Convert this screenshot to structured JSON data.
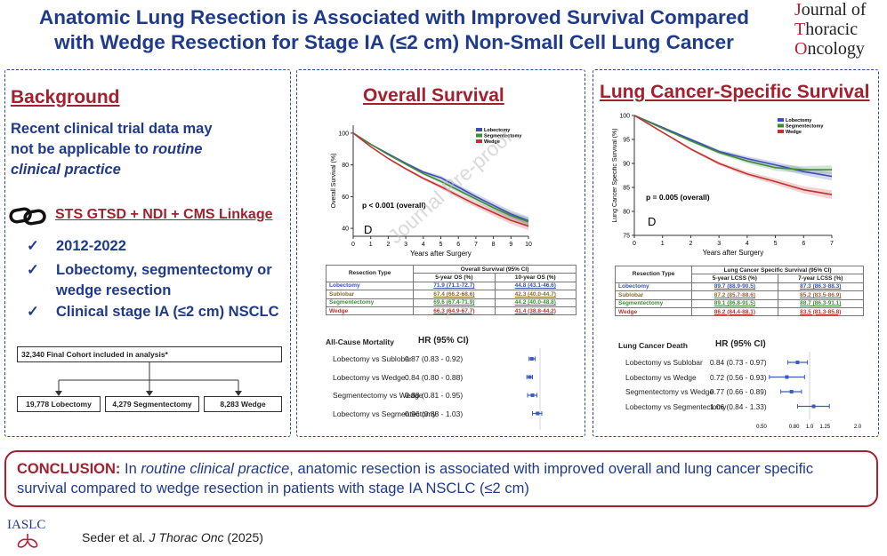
{
  "header": {
    "title_line1": "Anatomic Lung Resection is Associated with Improved Survival Compared",
    "title_line2": "with Wedge Resection for Stage IA (≤2 cm) Non-Small Cell Lung Cancer",
    "journal": [
      "Journal of",
      "Thoracic",
      "Oncology"
    ]
  },
  "background": {
    "heading": "Background",
    "text_line1": "Recent clinical trial data may",
    "text_line2": "not be applicable to",
    "text_italic": "routine",
    "text_line3": "clinical practice",
    "link_icon": "link-chain-icon",
    "linkage": "STS GTSD + NDI + CMS Linkage",
    "bullets": [
      {
        "lines": [
          "2012-2022"
        ]
      },
      {
        "lines": [
          "Lobectomy, segmentectomy or",
          "wedge resection"
        ]
      },
      {
        "lines": [
          "Clinical stage IA (≤2 cm) NSCLC"
        ]
      }
    ],
    "check": "✓",
    "cohort": "32,340 Final Cohort included in analysis*",
    "arms": [
      "19,778 Lobectomy",
      "4,279 Segmentectomy",
      "8,283 Wedge"
    ]
  },
  "os": {
    "heading": "Overall Survival",
    "watermark": "Journal Pre-proof",
    "chart_data": {
      "type": "line",
      "ylabel": "Overall Survival (%)",
      "xlabel": "Years after Surgery",
      "xlim": [
        0,
        10
      ],
      "ylim": [
        35,
        105
      ],
      "xticks": [
        0,
        1,
        2,
        3,
        4,
        5,
        6,
        7,
        8,
        9,
        10
      ],
      "yticks": [
        40,
        60,
        80,
        100
      ],
      "p_value": "p < 0.001 (overall)",
      "panel_letter": "D",
      "legend_position": "top-right",
      "series": [
        {
          "name": "Lobectomy",
          "color": "#3b4fb8",
          "x": [
            0,
            1,
            2,
            3,
            4,
            5,
            6,
            7,
            8,
            9,
            10
          ],
          "y": [
            100,
            93,
            87,
            81,
            75.5,
            71.9,
            66,
            60,
            54.5,
            49,
            44.8
          ]
        },
        {
          "name": "Segmentectomy",
          "color": "#3e8a3a",
          "x": [
            0,
            1,
            2,
            3,
            4,
            5,
            6,
            7,
            8,
            9,
            10
          ],
          "y": [
            100,
            93,
            86.5,
            80.5,
            74.5,
            69.6,
            64,
            58.5,
            53,
            48,
            44.2
          ]
        },
        {
          "name": "Wedge",
          "color": "#c23030",
          "x": [
            0,
            1,
            2,
            3,
            4,
            5,
            6,
            7,
            8,
            9,
            10
          ],
          "y": [
            100,
            91.5,
            84,
            77.5,
            71.5,
            66.3,
            60.5,
            55,
            50,
            45,
            41.4
          ]
        }
      ]
    },
    "table": {
      "headers": [
        "Resection Type",
        "Overall Survival (95% CI)"
      ],
      "subheaders": [
        "5-year OS (%)",
        "10-year OS (%)"
      ],
      "rows": [
        {
          "type": "Lobectomy",
          "a": "71.9 (71.1-72.7)",
          "b": "44.8 (43.1-46.6)",
          "color": "#3b4fb8"
        },
        {
          "type": "Sublobar",
          "a": "67.4 (66.2-68.6)",
          "b": "42.3 (40.0-44.7)",
          "color": "#8a6a2a"
        },
        {
          "type": "Segmentectomy",
          "a": "69.6 (67.4-71.9)",
          "b": "44.2 (40.0-48.8)",
          "color": "#3e8a3a"
        },
        {
          "type": "Wedge",
          "a": "66.3 (64.9-67.7)",
          "b": "41.4 (38.8-44.2)",
          "color": "#c23030"
        }
      ]
    },
    "forest": {
      "title": "All-Cause Mortality",
      "hr_header": "HR (95% CI)",
      "rows": [
        {
          "label": "Lobectomy vs Sublobar",
          "hr": "0.87 (0.83 - 0.92)",
          "v": 0.87,
          "lo": 0.83,
          "hi": 0.92
        },
        {
          "label": "Lobectomy vs Wedge",
          "hr": "0.84 (0.80 - 0.88)",
          "v": 0.84,
          "lo": 0.8,
          "hi": 0.88
        },
        {
          "label": "Segmentectomy vs Wedge",
          "hr": "0.88 (0.81 - 0.95)",
          "v": 0.88,
          "lo": 0.81,
          "hi": 0.95
        },
        {
          "label": "Lobectomy vs Segmentectomy",
          "hr": "0.96 (0.88 - 1.03)",
          "v": 0.96,
          "lo": 0.88,
          "hi": 1.03
        }
      ],
      "ticks": [
        "0.50",
        "0.80",
        "1.0",
        "1.25",
        "2.0"
      ]
    }
  },
  "lcss": {
    "heading": "Lung Cancer-Specific Survival",
    "chart_data": {
      "type": "line",
      "ylabel": "Lung Cancer Specific Survival (%)",
      "xlabel": "Years after Surgery",
      "xlim": [
        0,
        7
      ],
      "ylim": [
        75,
        100
      ],
      "xticks": [
        0,
        1,
        2,
        3,
        4,
        5,
        6,
        7
      ],
      "yticks": [
        75,
        80,
        85,
        90,
        95,
        100
      ],
      "p_value": "p = 0.005 (overall)",
      "panel_letter": "D",
      "legend_position": "top-right",
      "series": [
        {
          "name": "Lobectomy",
          "color": "#3b4fb8",
          "x": [
            0,
            1,
            2,
            3,
            4,
            5,
            6,
            7
          ],
          "y": [
            100,
            97.5,
            95,
            92.5,
            91,
            89.7,
            88.3,
            87.3
          ]
        },
        {
          "name": "Segmentectomy",
          "color": "#3e8a3a",
          "x": [
            0,
            1,
            2,
            3,
            4,
            5,
            6,
            7
          ],
          "y": [
            100,
            97.3,
            94.7,
            92.3,
            90.5,
            89.1,
            88.7,
            88.7
          ]
        },
        {
          "name": "Wedge",
          "color": "#c23030",
          "x": [
            0,
            1,
            2,
            3,
            4,
            5,
            6,
            7
          ],
          "y": [
            100,
            96.5,
            93,
            90,
            87.8,
            86.2,
            84.5,
            83.5
          ]
        }
      ]
    },
    "table": {
      "headers": [
        "Resection Type",
        "Lung Cancer Specific Survival (95% CI)"
      ],
      "subheaders": [
        "5-year LCSS (%)",
        "7-year LCSS (%)"
      ],
      "rows": [
        {
          "type": "Lobectomy",
          "a": "89.7 (88.9-90.5)",
          "b": "87.3 (86.3-88.3)",
          "color": "#3b4fb8"
        },
        {
          "type": "Sublobar",
          "a": "87.2 (85.7-88.6)",
          "b": "85.2 (83.5-86.9)",
          "color": "#8a6a2a"
        },
        {
          "type": "Segmentectomy",
          "a": "89.1 (86.8-91.5)",
          "b": "88.7 (86.3-91.1)",
          "color": "#3e8a3a"
        },
        {
          "type": "Wedge",
          "a": "86.2 (84.4-88.1)",
          "b": "83.5 (81.3-85.8)",
          "color": "#c23030"
        }
      ]
    },
    "forest": {
      "title": "Lung Cancer Death",
      "hr_header": "HR (95% CI)",
      "rows": [
        {
          "label": "Lobectomy vs Sublobar",
          "hr": "0.84 (0.73 - 0.97)",
          "v": 0.84,
          "lo": 0.73,
          "hi": 0.97
        },
        {
          "label": "Lobectomy vs Wedge",
          "hr": "0.72 (0.56 - 0.93)",
          "v": 0.72,
          "lo": 0.56,
          "hi": 0.93
        },
        {
          "label": "Segmentectomy vs Wedge",
          "hr": "0.77 (0.66 - 0.89)",
          "v": 0.77,
          "lo": 0.66,
          "hi": 0.89
        },
        {
          "label": "Lobectomy vs Segmentectomy",
          "hr": "1.06 (0.84 - 1.33)",
          "v": 1.06,
          "lo": 0.84,
          "hi": 1.33
        }
      ],
      "ticks": [
        "0.50",
        "0.80",
        "1.0",
        "1.25",
        "2.0"
      ]
    }
  },
  "conclusion": {
    "label": "CONCLUSION:",
    "pre": " In ",
    "italic": "routine clinical practice",
    "post": ", anatomic resection is associated with improved overall and lung cancer specific survival compared to wedge resection in patients with stage IA NSCLC (≤2 cm)"
  },
  "footer": {
    "logo": "IASLC",
    "citation_pre": "Seder et al. ",
    "citation_journal": "J Thorac Onc",
    "citation_post": " (2025)"
  },
  "colors": {
    "title": "#1f3a8a",
    "accent": "#a3202e"
  }
}
